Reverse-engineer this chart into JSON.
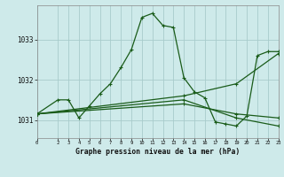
{
  "background_color": "#ceeaea",
  "plot_bg_color": "#ceeaea",
  "grid_color": "#a8cccc",
  "line_color": "#1a5c1a",
  "title": "Graphe pression niveau de la mer (hPa)",
  "xlim": [
    0,
    23
  ],
  "ylim": [
    1030.55,
    1033.85
  ],
  "yticks": [
    1031,
    1032,
    1033
  ],
  "xticks": [
    0,
    2,
    3,
    4,
    5,
    6,
    7,
    8,
    9,
    10,
    11,
    12,
    13,
    14,
    15,
    16,
    17,
    18,
    19,
    20,
    21,
    22,
    23
  ],
  "series": [
    {
      "x": [
        0,
        2,
        3,
        4,
        5,
        6,
        7,
        8,
        9,
        10,
        11,
        12,
        13,
        14,
        15,
        16,
        17,
        18,
        19,
        20,
        21,
        22,
        23
      ],
      "y": [
        1031.15,
        1031.5,
        1031.5,
        1031.05,
        1031.35,
        1031.65,
        1031.9,
        1032.3,
        1032.75,
        1033.55,
        1033.65,
        1033.35,
        1033.3,
        1032.05,
        1031.7,
        1031.55,
        1030.95,
        1030.9,
        1030.85,
        1031.1,
        1032.6,
        1032.7,
        1032.7
      ]
    },
    {
      "x": [
        0,
        14,
        19,
        23
      ],
      "y": [
        1031.15,
        1031.6,
        1031.9,
        1032.65
      ]
    },
    {
      "x": [
        0,
        14,
        19,
        23
      ],
      "y": [
        1031.15,
        1031.4,
        1031.15,
        1031.05
      ]
    },
    {
      "x": [
        0,
        14,
        19,
        23
      ],
      "y": [
        1031.15,
        1031.5,
        1031.05,
        1030.85
      ]
    }
  ]
}
